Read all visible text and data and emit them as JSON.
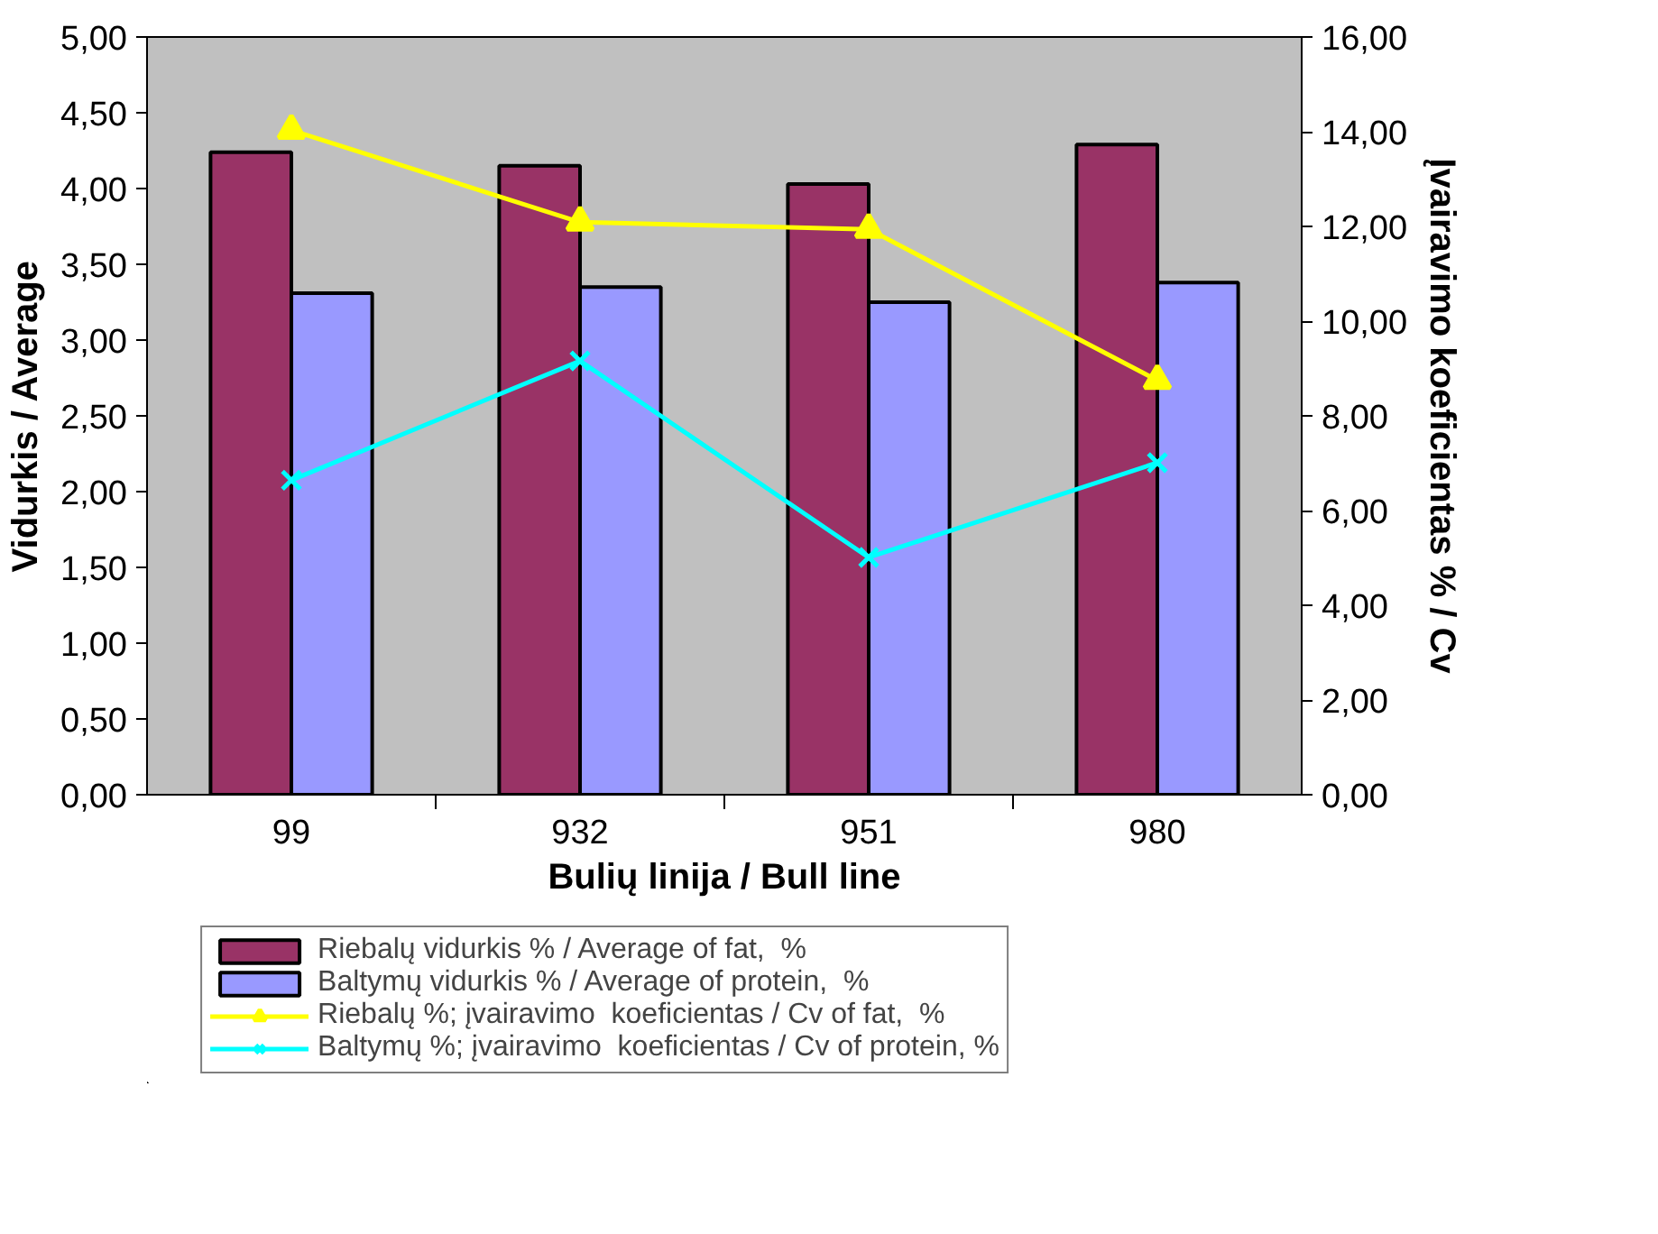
{
  "chart_data": {
    "type": "bar",
    "xlabel": "Bulių linija / Bull line",
    "ylabel": "Vidurkis / Average",
    "y2label": "Įvairavimo koeficientas % / Cv",
    "categories": [
      "99",
      "932",
      "951",
      "980"
    ],
    "series": [
      {
        "name": "Riebalų vidurkis % / Average of fat,  %",
        "color": "#993366",
        "values": [
          4.24,
          4.15,
          4.03,
          4.29
        ]
      },
      {
        "name": "Baltymų vidurkis % / Average of protein,  %",
        "color": "#9999ff",
        "values": [
          3.31,
          3.35,
          3.25,
          3.38
        ]
      },
      {
        "name": "Riebalų %; įvairavimo  koeficientas / Cv of fat,  %",
        "type": "line",
        "axis": "y2",
        "marker": "triangle",
        "color": "#ffff00",
        "values": [
          14.03,
          12.09,
          11.94,
          8.75
        ]
      },
      {
        "name": "Baltymų %; įvairavimo  koeficientas / Cv of protein, %",
        "type": "line",
        "axis": "y2",
        "marker": "cross",
        "color": "#00ffff",
        "values": [
          6.64,
          9.16,
          5.01,
          7.01
        ]
      }
    ],
    "ylim": [
      0,
      5
    ],
    "yticks": [
      {
        "value": 0,
        "label": "0,00"
      },
      {
        "value": 0.5,
        "label": "0,50"
      },
      {
        "value": 1,
        "label": "1,00"
      },
      {
        "value": 1.5,
        "label": "1,50"
      },
      {
        "value": 2,
        "label": "2,00"
      },
      {
        "value": 2.5,
        "label": "2,50"
      },
      {
        "value": 3,
        "label": "3,00"
      },
      {
        "value": 3.5,
        "label": "3,50"
      },
      {
        "value": 4,
        "label": "4,00"
      },
      {
        "value": 4.5,
        "label": "4,50"
      },
      {
        "value": 5,
        "label": "5,00"
      }
    ],
    "y2lim": [
      0,
      16
    ],
    "y2ticks": [
      {
        "value": 0,
        "label": "0,00"
      },
      {
        "value": 2,
        "label": "2,00"
      },
      {
        "value": 4,
        "label": "4,00"
      },
      {
        "value": 6,
        "label": "6,00"
      },
      {
        "value": 8,
        "label": "8,00"
      },
      {
        "value": 10,
        "label": "10,00"
      },
      {
        "value": 12,
        "label": "12,00"
      },
      {
        "value": 14,
        "label": "14,00"
      },
      {
        "value": 16,
        "label": "16,00"
      }
    ],
    "grid": false,
    "legend": "bottom"
  }
}
